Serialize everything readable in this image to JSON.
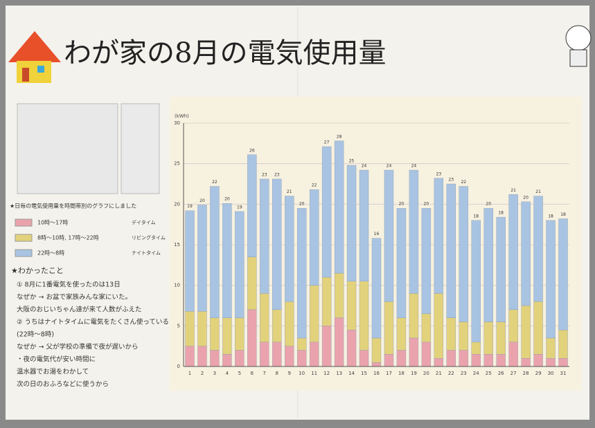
{
  "chart_data": {
    "type": "stacked_bar",
    "title": "わが家の8月の電気使用量",
    "y_label": "(kWh)",
    "categories": [
      "1",
      "2",
      "3",
      "4",
      "5",
      "6",
      "7",
      "8",
      "9",
      "10",
      "11",
      "12",
      "13",
      "14",
      "15",
      "16",
      "17",
      "18",
      "19",
      "20",
      "21",
      "22",
      "23",
      "24",
      "25",
      "26",
      "27",
      "28",
      "29",
      "30",
      "31"
    ],
    "series": [
      {
        "name": "10時～17時",
        "period_name": "デイタイム",
        "color": "#eaa3ad",
        "values": [
          2.5,
          2.5,
          2,
          1.5,
          2,
          7,
          3,
          3,
          2.5,
          2,
          3,
          5,
          6,
          4.5,
          2,
          0.5,
          1.5,
          2,
          3.5,
          3,
          1,
          2,
          2,
          1.5,
          1.5,
          1.5,
          3,
          1,
          1.5,
          1,
          1
        ]
      },
      {
        "name": "8時～10時, 17時～22時",
        "period_name": "リビングタイム",
        "color": "#e3d27c",
        "values": [
          4.3,
          4.3,
          4,
          4.5,
          4,
          6.5,
          6,
          4,
          5.5,
          1.5,
          7,
          6,
          5.5,
          6,
          8.5,
          3,
          6.5,
          4,
          5.5,
          3.5,
          8,
          4,
          3.5,
          1.5,
          4,
          4,
          4,
          6.5,
          6.5,
          2.5,
          3.5
        ]
      },
      {
        "name": "22時～8時",
        "period_name": "ナイトタイム",
        "color": "#a9c4e2",
        "values": [
          12.4,
          13.1,
          16.2,
          14.1,
          13.1,
          12.6,
          14.1,
          16.1,
          13,
          16,
          11.8,
          16.1,
          16.3,
          14.3,
          13.7,
          12.3,
          16.2,
          13.5,
          15.2,
          13,
          14.2,
          16.5,
          16.7,
          15,
          14,
          12.9,
          14.2,
          12.8,
          13,
          14.5,
          13.7
        ]
      }
    ],
    "totals": [
      19,
      20,
      22,
      20,
      19,
      26,
      23,
      23,
      21,
      20,
      22,
      27,
      28,
      25,
      24,
      16,
      24,
      20,
      24,
      20,
      23,
      23,
      22,
      18,
      20,
      18,
      21,
      20,
      21,
      18,
      18
    ],
    "ylim": [
      0,
      30
    ],
    "yticks": [
      0,
      5,
      10,
      15,
      20,
      25,
      30
    ],
    "grid": true
  },
  "notes": {
    "intro": "★日毎の電気使用量を時間帯別のグラフにしました",
    "found_title": "★わかったこと",
    "lines": [
      "① 8月に1番電気を使ったのは13日",
      "なぜか → お盆で家族みんな家にいた。",
      "大阪のおじいちゃん達が来て人数がふえた",
      "② うちはナイトタイムに電気をたくさん使っている",
      "(22時～8時)",
      "なぜか → 父が学校の準備で夜が遅いから",
      "・夜の電気代が安い時間に",
      "温水器でお湯をわかして",
      "次の日のおふろなどに使うから"
    ]
  }
}
